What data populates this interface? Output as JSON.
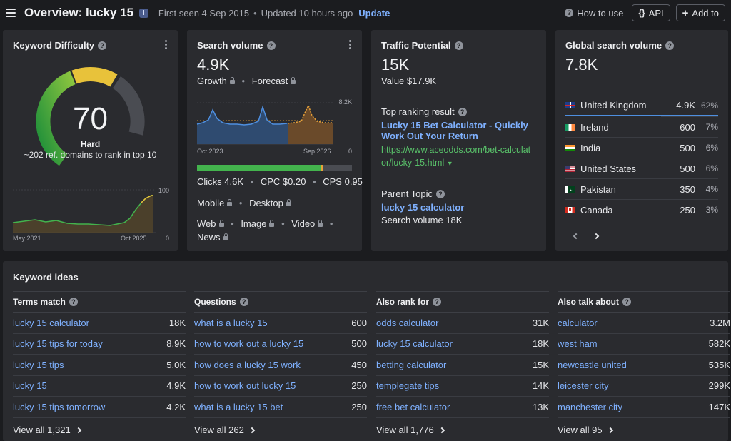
{
  "header": {
    "title": "Overview: lucky 15",
    "badge": "I",
    "first_seen": "First seen 4 Sep 2015",
    "updated": "Updated 10 hours ago",
    "update_label": "Update",
    "how_to_use": "How to use",
    "api_label": "API",
    "add_to_label": "Add to"
  },
  "kd": {
    "title": "Keyword Difficulty",
    "value": "70",
    "label": "Hard",
    "note": "~202 ref. domains to rank in top 10",
    "chart_max": "100",
    "chart_min": "0",
    "x_start": "May 2021",
    "x_end": "Oct 2025",
    "gauge_fraction": 0.7
  },
  "volume": {
    "title": "Search volume",
    "value": "4.9K",
    "growth": "Growth",
    "forecast": "Forecast",
    "chart_max": "8.2K",
    "chart_min": "0",
    "x_start": "Oct 2023",
    "x_end": "Sep 2026",
    "clicks": "Clicks 4.6K",
    "cpc": "CPC $0.20",
    "cps": "CPS 0.95",
    "mobile": "Mobile",
    "desktop": "Desktop",
    "web": "Web",
    "image": "Image",
    "video": "Video",
    "news": "News"
  },
  "traffic": {
    "title": "Traffic Potential",
    "value": "15K",
    "value_label": "Value $17.9K",
    "top_result_label": "Top ranking result",
    "top_result_title_1": "Lucky 15 Bet Calculator - Quickly",
    "top_result_title_2": "Work Out Your Return",
    "top_result_url_1": "https://www.aceodds.com/bet-calculat",
    "top_result_url_2": "or/lucky-15.html",
    "parent_topic_label": "Parent Topic",
    "parent_topic": "lucky 15 calculator",
    "parent_volume": "Search volume 18K"
  },
  "global": {
    "title": "Global search volume",
    "value": "7.8K",
    "countries": [
      {
        "name": "United Kingdom",
        "value": "4.9K",
        "pct": "62%"
      },
      {
        "name": "Ireland",
        "value": "600",
        "pct": "7%"
      },
      {
        "name": "India",
        "value": "500",
        "pct": "6%"
      },
      {
        "name": "United States",
        "value": "500",
        "pct": "6%"
      },
      {
        "name": "Pakistan",
        "value": "350",
        "pct": "4%"
      },
      {
        "name": "Canada",
        "value": "250",
        "pct": "3%"
      }
    ]
  },
  "ideas": {
    "title": "Keyword ideas",
    "columns": [
      {
        "head": "Terms match",
        "rows": [
          {
            "kw": "lucky 15 calculator",
            "vol": "18K"
          },
          {
            "kw": "lucky 15 tips for today",
            "vol": "8.9K"
          },
          {
            "kw": "lucky 15 tips",
            "vol": "5.0K"
          },
          {
            "kw": "lucky 15",
            "vol": "4.9K"
          },
          {
            "kw": "lucky 15 tips tomorrow",
            "vol": "4.2K"
          }
        ],
        "view_all": "View all 1,321"
      },
      {
        "head": "Questions",
        "rows": [
          {
            "kw": "what is a lucky 15",
            "vol": "600"
          },
          {
            "kw": "how to work out a lucky 15",
            "vol": "500"
          },
          {
            "kw": "how does a lucky 15 work",
            "vol": "450"
          },
          {
            "kw": "how to work out lucky 15",
            "vol": "250"
          },
          {
            "kw": "what is a lucky 15 bet",
            "vol": "250"
          }
        ],
        "view_all": "View all 262"
      },
      {
        "head": "Also rank for",
        "rows": [
          {
            "kw": "odds calculator",
            "vol": "31K"
          },
          {
            "kw": "lucky 15 calculator",
            "vol": "18K"
          },
          {
            "kw": "betting calculator",
            "vol": "15K"
          },
          {
            "kw": "templegate tips",
            "vol": "14K"
          },
          {
            "kw": "free bet calculator",
            "vol": "13K"
          }
        ],
        "view_all": "View all 1,776"
      },
      {
        "head": "Also talk about",
        "rows": [
          {
            "kw": "calculator",
            "vol": "3.2M"
          },
          {
            "kw": "west ham",
            "vol": "582K"
          },
          {
            "kw": "newcastle united",
            "vol": "535K"
          },
          {
            "kw": "leicester city",
            "vol": "299K"
          },
          {
            "kw": "manchester city",
            "vol": "147K"
          }
        ],
        "view_all": "View all 95"
      }
    ]
  },
  "colors": {
    "background": "#1b1c1f",
    "card": "#2a2b2f",
    "link": "#7fb1ff",
    "url": "#59c26a",
    "gauge_green": "#3fae4a",
    "gauge_yellow": "#e8c23a",
    "gauge_gray": "#4a4c52"
  },
  "icons": [
    "menu-icon",
    "help-icon",
    "braces-icon",
    "plus-icon",
    "lock-icon",
    "kebab-icon",
    "chevron-right-icon",
    "chevron-left-icon",
    "caret-down-icon",
    "flag-icon"
  ]
}
